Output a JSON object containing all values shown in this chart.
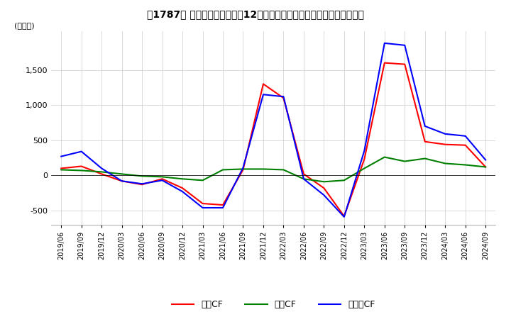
{
  "title": "[‘1787’] キャッシュフローの12か月移動合計の対前年同期増減額の推移",
  "title_text": "【1787】 キャッシュフローの12か月移動合計の対前年同期増減額の推移",
  "ylabel": "(百万円)",
  "ylim": [
    -700,
    2050
  ],
  "yticks": [
    -500,
    0,
    500,
    1000,
    1500
  ],
  "dates": [
    "2019/06",
    "2019/09",
    "2019/12",
    "2020/03",
    "2020/06",
    "2020/09",
    "2020/12",
    "2021/03",
    "2021/06",
    "2021/09",
    "2021/12",
    "2022/03",
    "2022/06",
    "2022/09",
    "2022/12",
    "2023/03",
    "2023/06",
    "2023/09",
    "2023/12",
    "2024/03",
    "2024/06",
    "2024/09"
  ],
  "operating_cf": [
    100,
    130,
    20,
    -80,
    -130,
    -50,
    -180,
    -400,
    -420,
    80,
    1300,
    1100,
    20,
    -180,
    -580,
    230,
    1600,
    1580,
    480,
    440,
    430,
    120
  ],
  "investing_cf": [
    80,
    70,
    50,
    20,
    -10,
    -20,
    -50,
    -70,
    80,
    90,
    90,
    80,
    -50,
    -90,
    -70,
    100,
    260,
    200,
    240,
    170,
    150,
    120
  ],
  "free_cf": [
    270,
    340,
    100,
    -80,
    -120,
    -70,
    -230,
    -460,
    -460,
    110,
    1150,
    1120,
    -50,
    -280,
    -590,
    350,
    1880,
    1850,
    700,
    590,
    560,
    220
  ],
  "operating_color": "#ff0000",
  "investing_color": "#008000",
  "free_color": "#0000ff",
  "background_color": "#ffffff",
  "grid_color": "#cccccc",
  "legend_labels": [
    "営業CF",
    "投資CF",
    "フリーCF"
  ]
}
